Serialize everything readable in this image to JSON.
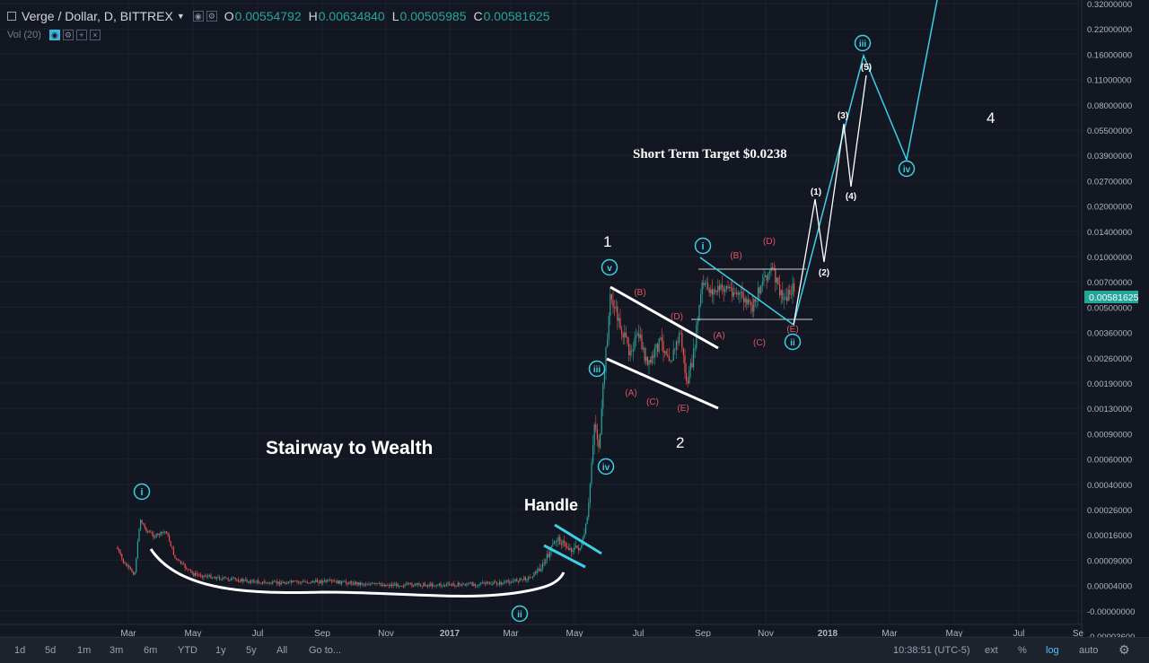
{
  "header": {
    "symbol": "Verge / Dollar, D, BITTREX",
    "open_label": "O",
    "open": "0.00554792",
    "high_label": "H",
    "high": "0.00634840",
    "low_label": "L",
    "low": "0.00505985",
    "close_label": "C",
    "close": "0.00581625",
    "indicator": "Vol (20)"
  },
  "chart_data": {
    "type": "candlestick",
    "yscale": "log",
    "last_price": "0.00581625",
    "y_ticks": [
      "0.32000000",
      "0.22000000",
      "0.16000000",
      "0.11000000",
      "0.08000000",
      "0.05500000",
      "0.03900000",
      "0.02700000",
      "0.02000000",
      "0.01400000",
      "0.01000000",
      "0.00700000",
      "0.00500000",
      "0.00360000",
      "0.00260000",
      "0.00190000",
      "0.00130000",
      "0.00090000",
      "0.00060000",
      "0.00040000",
      "0.00026000",
      "0.00016000",
      "0.00009000",
      "0.00004000",
      "-0.00000000",
      "-0.00003600"
    ],
    "x_ticks": [
      "Mar",
      "May",
      "Jul",
      "Sep",
      "Nov",
      "2017",
      "Mar",
      "May",
      "Jul",
      "Sep",
      "Nov",
      "2018",
      "Mar",
      "May",
      "Jul",
      "Se"
    ],
    "series": [
      {
        "x": "Feb 2016",
        "y": 0.00012
      },
      {
        "x": "Mar 2016",
        "y": 0.00025
      },
      {
        "x": "Apr 2016",
        "y": 0.00012
      },
      {
        "x": "May 2016",
        "y": 4e-05
      },
      {
        "x": "Jul 2016",
        "y": 3e-05
      },
      {
        "x": "Sep 2016",
        "y": 3e-05
      },
      {
        "x": "Nov 2016",
        "y": 2e-05
      },
      {
        "x": "Jan 2017",
        "y": 2e-05
      },
      {
        "x": "Mar 2017",
        "y": 2e-05
      },
      {
        "x": "Apr 2017",
        "y": 0.00016
      },
      {
        "x": "May 2017",
        "y": 0.0002
      },
      {
        "x": "Jun 2017",
        "y": 0.0065
      },
      {
        "x": "Jul 2017",
        "y": 0.0024
      },
      {
        "x": "Aug 2017",
        "y": 0.0017
      },
      {
        "x": "Sep 2017",
        "y": 0.0098
      },
      {
        "x": "Oct 2017",
        "y": 0.0045
      },
      {
        "x": "Nov 2017",
        "y": 0.0058
      }
    ],
    "annotations": {
      "stairway": "Stairway to Wealth",
      "handle": "Handle",
      "target": "Short Term Target $0.0238",
      "wave_1": "1",
      "wave_2": "2",
      "wave_4": "4",
      "circ_i": "i",
      "circ_ii": "ii",
      "circ_iii": "iii",
      "circ_iv": "iv",
      "circ_v": "v",
      "sub_A": "(A)",
      "sub_B": "(B)",
      "sub_C": "(C)",
      "sub_D": "(D)",
      "sub_E": "(E)",
      "w1": "(1)",
      "w2": "(2)",
      "w3": "(3)",
      "w4": "(4)",
      "w5": "(5)"
    }
  },
  "bottom_bar": {
    "timeframes": [
      "1d",
      "5d",
      "1m",
      "3m",
      "6m",
      "YTD",
      "1y",
      "5y",
      "All"
    ],
    "goto": "Go to...",
    "time": "10:38:51 (UTC-5)",
    "ext": "ext",
    "percent": "%",
    "log": "log",
    "auto": "auto",
    "gear": "gear-icon"
  },
  "colors": {
    "bg": "#131722",
    "up": "#26a69a",
    "down": "#ef5350",
    "cyan": "#4fc3f7",
    "white": "#ffffff",
    "red_label": "#e05565"
  }
}
